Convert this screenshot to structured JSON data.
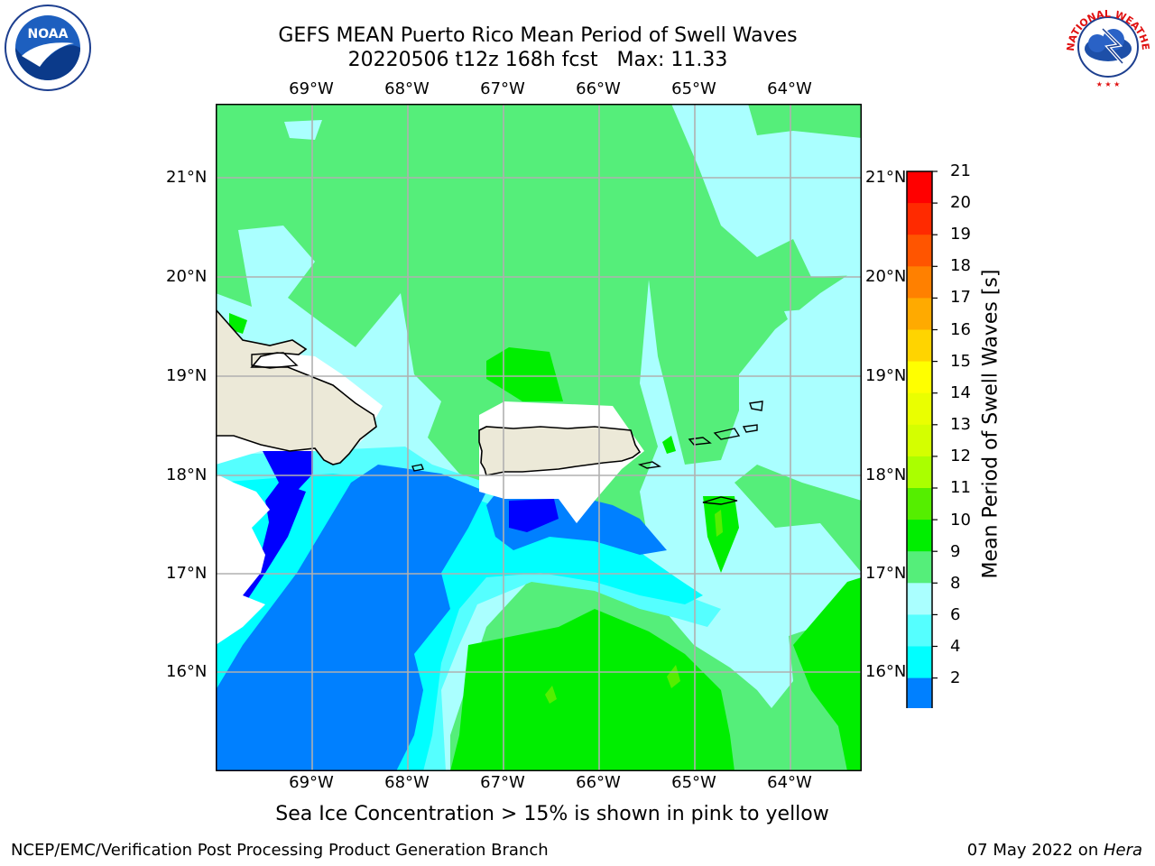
{
  "header": {
    "title_line1": "GEFS MEAN Puerto Rico Mean Period of Swell Waves",
    "title_line2": "20220506 t12z 168h fcst   Max: 11.33"
  },
  "map": {
    "lon_labels": [
      "69°W",
      "68°W",
      "67°W",
      "66°W",
      "65°W",
      "64°W"
    ],
    "lat_labels": [
      "21°N",
      "20°N",
      "19°N",
      "18°N",
      "17°N",
      "16°N"
    ],
    "land_color": "#ece9d8",
    "grid_color": "#b0b0b0"
  },
  "colorbar": {
    "title": "Mean Period of Swell Waves [s]",
    "ticks": [
      "21",
      "20",
      "19",
      "18",
      "17",
      "16",
      "15",
      "14",
      "13",
      "12",
      "11",
      "10",
      "9",
      "8",
      "6",
      "4",
      "2"
    ],
    "colors": [
      "#ff0000",
      "#ff2a00",
      "#ff5500",
      "#ff8000",
      "#ffaa00",
      "#ffd400",
      "#ffff00",
      "#eaff00",
      "#d4ff00",
      "#aaff00",
      "#55ee00",
      "#00ee00",
      "#55ee7a",
      "#aaffff",
      "#55ffff",
      "#00ffff",
      "#0080ff",
      "#0000ff"
    ]
  },
  "footer": {
    "note": "Sea Ice Concentration > 15% is shown in pink to yellow",
    "left": "NCEP/EMC/Verification Post Processing Product Generation Branch",
    "right_date": "07 May 2022 on ",
    "right_host": "Hera"
  },
  "logos": {
    "noaa_text": "NOAA",
    "nws_text": "NATIONAL WEATHER SERVICE"
  }
}
